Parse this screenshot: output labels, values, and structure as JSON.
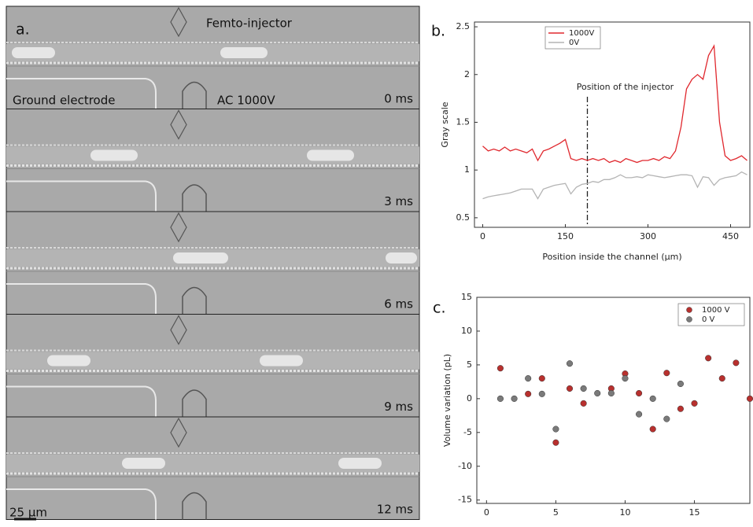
{
  "panel_a": {
    "label": "a.",
    "injector_label": "Femto-injector",
    "ground_label": "Ground electrode",
    "ac_label": "AC 1000V",
    "scale_label": "25 µm",
    "frames": [
      {
        "time": "0 ms"
      },
      {
        "time": "3 ms"
      },
      {
        "time": "6 ms"
      },
      {
        "time": "9 ms"
      },
      {
        "time": "12 ms"
      }
    ]
  },
  "chart_data": [
    {
      "type": "line",
      "panel_label": "b.",
      "xlabel": "Position inside the channel (µm)",
      "ylabel": "Gray scale",
      "annotation": {
        "text": "Position of the injector",
        "x": 190
      },
      "x": [
        0,
        10,
        20,
        30,
        40,
        50,
        60,
        70,
        80,
        90,
        100,
        110,
        120,
        130,
        140,
        150,
        160,
        170,
        180,
        190,
        200,
        210,
        220,
        230,
        240,
        250,
        260,
        270,
        280,
        290,
        300,
        310,
        320,
        330,
        340,
        350,
        360,
        370,
        380,
        390,
        400,
        410,
        420,
        430,
        440,
        450,
        460,
        470,
        480
      ],
      "series": [
        {
          "name": "1000V",
          "color": "#e0282e",
          "values": [
            1.25,
            1.2,
            1.22,
            1.2,
            1.24,
            1.2,
            1.22,
            1.2,
            1.18,
            1.22,
            1.1,
            1.2,
            1.22,
            1.25,
            1.28,
            1.32,
            1.12,
            1.1,
            1.12,
            1.1,
            1.12,
            1.1,
            1.12,
            1.08,
            1.1,
            1.08,
            1.12,
            1.1,
            1.08,
            1.1,
            1.1,
            1.12,
            1.1,
            1.14,
            1.12,
            1.2,
            1.45,
            1.85,
            1.95,
            2.0,
            1.95,
            2.2,
            2.3,
            1.5,
            1.15,
            1.1,
            1.12,
            1.15,
            1.1
          ]
        },
        {
          "name": "0V",
          "color": "#b4b4b4",
          "values": [
            0.7,
            0.72,
            0.73,
            0.74,
            0.75,
            0.76,
            0.78,
            0.8,
            0.8,
            0.8,
            0.7,
            0.8,
            0.82,
            0.84,
            0.85,
            0.86,
            0.75,
            0.82,
            0.85,
            0.86,
            0.88,
            0.87,
            0.9,
            0.9,
            0.92,
            0.95,
            0.92,
            0.92,
            0.93,
            0.92,
            0.95,
            0.94,
            0.93,
            0.92,
            0.93,
            0.94,
            0.95,
            0.95,
            0.94,
            0.82,
            0.93,
            0.92,
            0.84,
            0.9,
            0.92,
            0.93,
            0.94,
            0.98,
            0.95
          ]
        }
      ],
      "xlim": [
        -15,
        485
      ],
      "xticks": [
        0,
        150,
        300,
        450
      ],
      "ylim": [
        0.4,
        2.55
      ],
      "yticks": [
        0.5,
        1.0,
        1.5,
        2.0,
        2.5
      ]
    },
    {
      "type": "scatter",
      "panel_label": "c.",
      "ylabel": "Volume variation (pL)",
      "series": [
        {
          "name": "1000 V",
          "color": "#b8302e",
          "x": [
            1,
            3,
            4,
            5,
            6,
            7,
            9,
            10,
            11,
            12,
            13,
            14,
            15,
            16,
            17,
            18,
            19
          ],
          "values": [
            4.5,
            0.7,
            3,
            -6.5,
            1.5,
            -0.7,
            1.5,
            3.7,
            0.8,
            -4.5,
            3.8,
            -1.5,
            -0.7,
            6,
            3,
            5.3,
            0
          ]
        },
        {
          "name": "0 V",
          "color": "#7a7a7a",
          "x": [
            1,
            2,
            3,
            4,
            5,
            6,
            7,
            8,
            9,
            10,
            11,
            12,
            13,
            14
          ],
          "values": [
            0,
            0,
            3,
            0.7,
            -4.5,
            5.2,
            1.5,
            0.8,
            0.8,
            3,
            -2.3,
            0,
            -3,
            2.2
          ]
        }
      ],
      "xlim": [
        -0.7,
        19
      ],
      "xticks": [
        0,
        5,
        10,
        15
      ],
      "ylim": [
        -15.5,
        15
      ],
      "yticks": [
        -15,
        -10,
        -5,
        0,
        5,
        10,
        15
      ]
    }
  ]
}
